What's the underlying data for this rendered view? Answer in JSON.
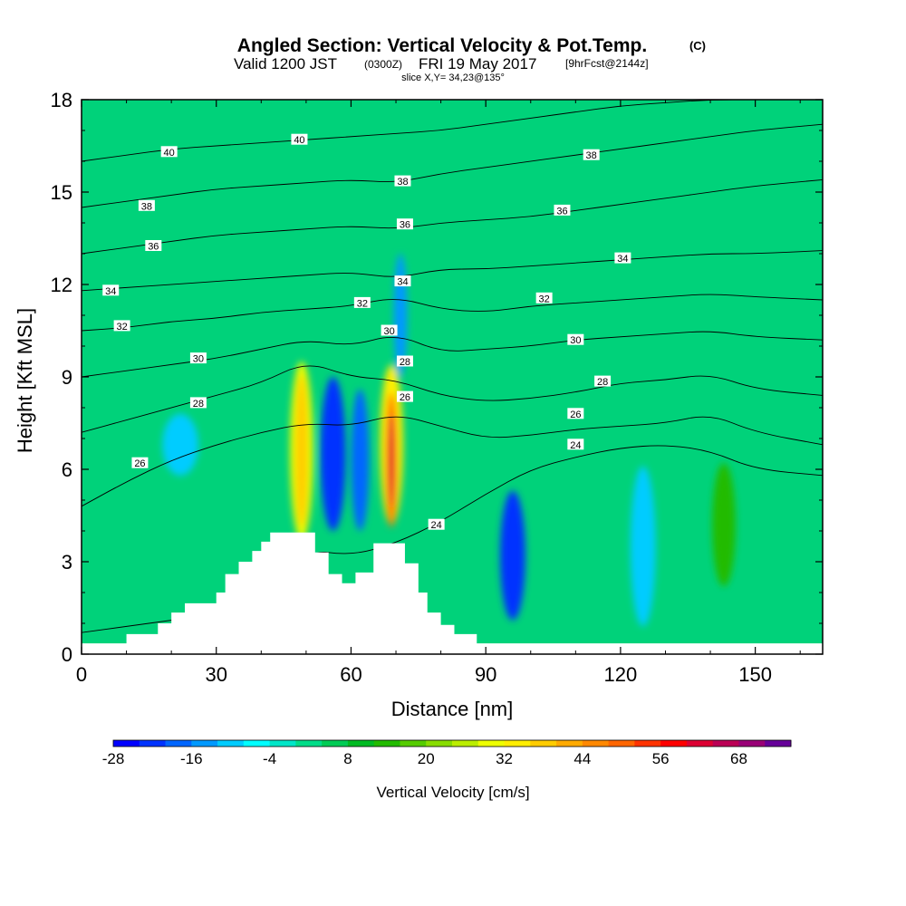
{
  "title": {
    "main": "Angled Section: Vertical Velocity & Pot.Temp.",
    "copyright": "(C)",
    "valid_prefix": "Valid 1200 JST",
    "valid_utc": "(0300Z)",
    "valid_date": "FRI 19 May 2017",
    "forecast": "[9hrFcst@2144z]",
    "slice": "slice X,Y= 34,23@135°"
  },
  "chart_data": {
    "type": "heatmap",
    "xlabel": "Distance [nm]",
    "ylabel": "Height [Kft MSL]",
    "xlim": [
      0,
      165
    ],
    "ylim": [
      0,
      18
    ],
    "x_ticks": [
      0,
      30,
      60,
      90,
      120,
      150
    ],
    "y_ticks": [
      0,
      3,
      6,
      9,
      12,
      15,
      18
    ],
    "colorbar": {
      "label": "Vertical Velocity [cm/s]",
      "tick_values": [
        -28,
        -16,
        -4,
        8,
        20,
        32,
        44,
        56,
        68
      ],
      "tick_labels": [
        "-28",
        "-16",
        "-4",
        "8",
        "20",
        "32",
        "44",
        "56",
        "68"
      ],
      "bin_edges": [
        -28,
        68
      ],
      "bin_width": 4,
      "colors": [
        "#0000ff",
        "#0033ff",
        "#0066ff",
        "#0099ff",
        "#00ccff",
        "#00ffff",
        "#00e6c8",
        "#00dd88",
        "#00cc55",
        "#00bb22",
        "#22bb00",
        "#55cc00",
        "#88dd00",
        "#bbee00",
        "#eeff00",
        "#ffee00",
        "#ffcc00",
        "#ffaa00",
        "#ff8800",
        "#ff6600",
        "#ff3300",
        "#ff0000",
        "#dd0033",
        "#bb0055",
        "#990077",
        "#660099"
      ]
    },
    "terrain_profile": [
      [
        0,
        0.35
      ],
      [
        10,
        0.35
      ],
      [
        10,
        0.65
      ],
      [
        17,
        0.65
      ],
      [
        17,
        1.0
      ],
      [
        20,
        1.0
      ],
      [
        20,
        1.35
      ],
      [
        23,
        1.35
      ],
      [
        23,
        1.65
      ],
      [
        30,
        1.65
      ],
      [
        30,
        2.0
      ],
      [
        32,
        2.0
      ],
      [
        32,
        2.6
      ],
      [
        35,
        2.6
      ],
      [
        35,
        3.0
      ],
      [
        38,
        3.0
      ],
      [
        38,
        3.35
      ],
      [
        40,
        3.35
      ],
      [
        40,
        3.65
      ],
      [
        42,
        3.65
      ],
      [
        42,
        3.95
      ],
      [
        52,
        3.95
      ],
      [
        52,
        3.3
      ],
      [
        55,
        3.3
      ],
      [
        55,
        2.6
      ],
      [
        58,
        2.6
      ],
      [
        58,
        2.3
      ],
      [
        61,
        2.3
      ],
      [
        61,
        2.65
      ],
      [
        65,
        2.65
      ],
      [
        65,
        3.6
      ],
      [
        72,
        3.6
      ],
      [
        72,
        2.95
      ],
      [
        75,
        2.95
      ],
      [
        75,
        2.0
      ],
      [
        77,
        2.0
      ],
      [
        77,
        1.35
      ],
      [
        80,
        1.35
      ],
      [
        80,
        0.95
      ],
      [
        83,
        0.95
      ],
      [
        83,
        0.65
      ],
      [
        88,
        0.65
      ],
      [
        88,
        0.35
      ],
      [
        165,
        0.35
      ]
    ],
    "isentropes": [
      {
        "theta": 24,
        "points": [
          [
            0,
            0.7
          ],
          [
            10,
            0.9
          ],
          [
            20,
            1.1
          ],
          [
            30,
            1.3
          ],
          [
            40,
            1.6
          ],
          [
            50,
            3.4
          ],
          [
            60,
            3.2
          ],
          [
            70,
            3.6
          ],
          [
            80,
            4.3
          ],
          [
            90,
            5.2
          ],
          [
            100,
            6.0
          ],
          [
            110,
            6.4
          ],
          [
            120,
            6.7
          ],
          [
            130,
            6.8
          ],
          [
            140,
            6.6
          ],
          [
            150,
            6.0
          ],
          [
            165,
            5.8
          ]
        ]
      },
      {
        "theta": 26,
        "points": [
          [
            0,
            4.8
          ],
          [
            10,
            5.6
          ],
          [
            20,
            6.3
          ],
          [
            30,
            6.8
          ],
          [
            40,
            7.2
          ],
          [
            50,
            7.5
          ],
          [
            60,
            7.4
          ],
          [
            70,
            7.8
          ],
          [
            80,
            7.4
          ],
          [
            90,
            7.0
          ],
          [
            100,
            7.1
          ],
          [
            110,
            7.3
          ],
          [
            120,
            7.4
          ],
          [
            130,
            7.5
          ],
          [
            140,
            7.8
          ],
          [
            150,
            7.2
          ],
          [
            165,
            6.8
          ]
        ]
      },
      {
        "theta": 28,
        "points": [
          [
            0,
            7.2
          ],
          [
            10,
            7.6
          ],
          [
            20,
            8.0
          ],
          [
            30,
            8.4
          ],
          [
            40,
            8.8
          ],
          [
            50,
            9.5
          ],
          [
            60,
            9.0
          ],
          [
            70,
            8.9
          ],
          [
            80,
            8.4
          ],
          [
            90,
            8.2
          ],
          [
            100,
            8.3
          ],
          [
            110,
            8.5
          ],
          [
            120,
            8.8
          ],
          [
            130,
            8.9
          ],
          [
            140,
            9.1
          ],
          [
            150,
            8.6
          ],
          [
            165,
            8.4
          ]
        ]
      },
      {
        "theta": 30,
        "points": [
          [
            0,
            9.0
          ],
          [
            10,
            9.2
          ],
          [
            20,
            9.4
          ],
          [
            30,
            9.6
          ],
          [
            40,
            9.9
          ],
          [
            50,
            10.2
          ],
          [
            60,
            10.0
          ],
          [
            70,
            10.4
          ],
          [
            80,
            9.8
          ],
          [
            90,
            9.9
          ],
          [
            100,
            10.0
          ],
          [
            110,
            10.2
          ],
          [
            120,
            10.3
          ],
          [
            130,
            10.4
          ],
          [
            140,
            10.5
          ],
          [
            150,
            10.3
          ],
          [
            165,
            10.2
          ]
        ]
      },
      {
        "theta": 32,
        "points": [
          [
            0,
            10.5
          ],
          [
            10,
            10.6
          ],
          [
            20,
            10.8
          ],
          [
            30,
            10.9
          ],
          [
            40,
            11.1
          ],
          [
            50,
            11.2
          ],
          [
            60,
            11.3
          ],
          [
            70,
            11.6
          ],
          [
            80,
            11.2
          ],
          [
            90,
            11.1
          ],
          [
            100,
            11.3
          ],
          [
            110,
            11.4
          ],
          [
            120,
            11.5
          ],
          [
            130,
            11.6
          ],
          [
            140,
            11.7
          ],
          [
            150,
            11.6
          ],
          [
            165,
            11.5
          ]
        ]
      },
      {
        "theta": 34,
        "points": [
          [
            0,
            11.8
          ],
          [
            10,
            11.9
          ],
          [
            20,
            12.0
          ],
          [
            30,
            12.1
          ],
          [
            40,
            12.2
          ],
          [
            50,
            12.3
          ],
          [
            60,
            12.4
          ],
          [
            70,
            12.2
          ],
          [
            80,
            12.5
          ],
          [
            90,
            12.5
          ],
          [
            100,
            12.6
          ],
          [
            110,
            12.7
          ],
          [
            120,
            12.8
          ],
          [
            130,
            12.9
          ],
          [
            140,
            13.0
          ],
          [
            150,
            13.0
          ],
          [
            165,
            13.1
          ]
        ]
      },
      {
        "theta": 36,
        "points": [
          [
            0,
            13.0
          ],
          [
            10,
            13.2
          ],
          [
            20,
            13.4
          ],
          [
            30,
            13.6
          ],
          [
            40,
            13.7
          ],
          [
            50,
            13.8
          ],
          [
            60,
            13.9
          ],
          [
            70,
            13.8
          ],
          [
            80,
            14.0
          ],
          [
            90,
            14.1
          ],
          [
            100,
            14.2
          ],
          [
            110,
            14.4
          ],
          [
            120,
            14.6
          ],
          [
            130,
            14.8
          ],
          [
            140,
            15.0
          ],
          [
            150,
            15.2
          ],
          [
            165,
            15.4
          ]
        ]
      },
      {
        "theta": 38,
        "points": [
          [
            0,
            14.5
          ],
          [
            10,
            14.7
          ],
          [
            20,
            14.9
          ],
          [
            30,
            15.1
          ],
          [
            40,
            15.2
          ],
          [
            50,
            15.3
          ],
          [
            60,
            15.4
          ],
          [
            70,
            15.3
          ],
          [
            80,
            15.6
          ],
          [
            90,
            15.8
          ],
          [
            100,
            16.0
          ],
          [
            110,
            16.2
          ],
          [
            120,
            16.4
          ],
          [
            130,
            16.6
          ],
          [
            140,
            16.8
          ],
          [
            150,
            17.0
          ],
          [
            165,
            17.2
          ]
        ]
      },
      {
        "theta": 40,
        "points": [
          [
            0,
            16.0
          ],
          [
            10,
            16.2
          ],
          [
            20,
            16.4
          ],
          [
            30,
            16.5
          ],
          [
            40,
            16.6
          ],
          [
            50,
            16.7
          ],
          [
            60,
            16.8
          ],
          [
            70,
            16.9
          ],
          [
            80,
            17.0
          ],
          [
            90,
            17.2
          ],
          [
            100,
            17.4
          ],
          [
            110,
            17.6
          ],
          [
            120,
            17.8
          ],
          [
            130,
            17.9
          ],
          [
            140,
            18.0
          ],
          [
            150,
            18.0
          ],
          [
            165,
            18.0
          ]
        ]
      }
    ],
    "contour_labels": [
      {
        "text": "40",
        "x": 19.5,
        "y": 16.3
      },
      {
        "text": "40",
        "x": 48.5,
        "y": 16.7
      },
      {
        "text": "38",
        "x": 14.5,
        "y": 14.55
      },
      {
        "text": "38",
        "x": 71.5,
        "y": 15.35
      },
      {
        "text": "38",
        "x": 113.5,
        "y": 16.2
      },
      {
        "text": "36",
        "x": 16.0,
        "y": 13.25
      },
      {
        "text": "36",
        "x": 72.0,
        "y": 13.95
      },
      {
        "text": "36",
        "x": 107.0,
        "y": 14.4
      },
      {
        "text": "34",
        "x": 6.5,
        "y": 11.8
      },
      {
        "text": "34",
        "x": 71.5,
        "y": 12.1
      },
      {
        "text": "34",
        "x": 120.5,
        "y": 12.85
      },
      {
        "text": "32",
        "x": 9.0,
        "y": 10.65
      },
      {
        "text": "32",
        "x": 62.5,
        "y": 11.4
      },
      {
        "text": "32",
        "x": 103.0,
        "y": 11.55
      },
      {
        "text": "30",
        "x": 26.0,
        "y": 9.6
      },
      {
        "text": "30",
        "x": 68.5,
        "y": 10.5
      },
      {
        "text": "30",
        "x": 110.0,
        "y": 10.2
      },
      {
        "text": "28",
        "x": 26.0,
        "y": 8.15
      },
      {
        "text": "28",
        "x": 72.0,
        "y": 9.5
      },
      {
        "text": "28",
        "x": 116.0,
        "y": 8.85
      },
      {
        "text": "26",
        "x": 13.0,
        "y": 6.2
      },
      {
        "text": "26",
        "x": 72.0,
        "y": 8.35
      },
      {
        "text": "26",
        "x": 110.0,
        "y": 7.8
      },
      {
        "text": "24",
        "x": 79.0,
        "y": 4.2
      },
      {
        "text": "24",
        "x": 110.0,
        "y": 6.8
      }
    ],
    "velocity_cells": [
      {
        "x": 49,
        "y": 6.6,
        "rx": 2.6,
        "ry": 2.9,
        "v": 28
      },
      {
        "x": 49,
        "y": 6.6,
        "rx": 1.4,
        "ry": 2.5,
        "v": 38
      },
      {
        "x": 69,
        "y": 6.8,
        "rx": 2.6,
        "ry": 2.6,
        "v": 32
      },
      {
        "x": 69,
        "y": 6.3,
        "rx": 1.2,
        "ry": 2.2,
        "v": 50
      },
      {
        "x": 69,
        "y": 6.3,
        "rx": 0.6,
        "ry": 1.5,
        "v": 60
      },
      {
        "x": 56,
        "y": 6.5,
        "rx": 2.8,
        "ry": 2.5,
        "v": -22
      },
      {
        "x": 62,
        "y": 6.3,
        "rx": 2.0,
        "ry": 2.3,
        "v": -20
      },
      {
        "x": 96,
        "y": 3.2,
        "rx": 2.8,
        "ry": 2.1,
        "v": -24
      },
      {
        "x": 125,
        "y": 3.5,
        "rx": 2.8,
        "ry": 2.6,
        "v": -12
      },
      {
        "x": 143,
        "y": 4.2,
        "rx": 2.6,
        "ry": 2.0,
        "v": 14
      },
      {
        "x": 22,
        "y": 6.8,
        "rx": 4.0,
        "ry": 1.0,
        "v": -10
      },
      {
        "x": 71,
        "y": 11.0,
        "rx": 1.5,
        "ry": 2.0,
        "v": -14
      }
    ]
  }
}
